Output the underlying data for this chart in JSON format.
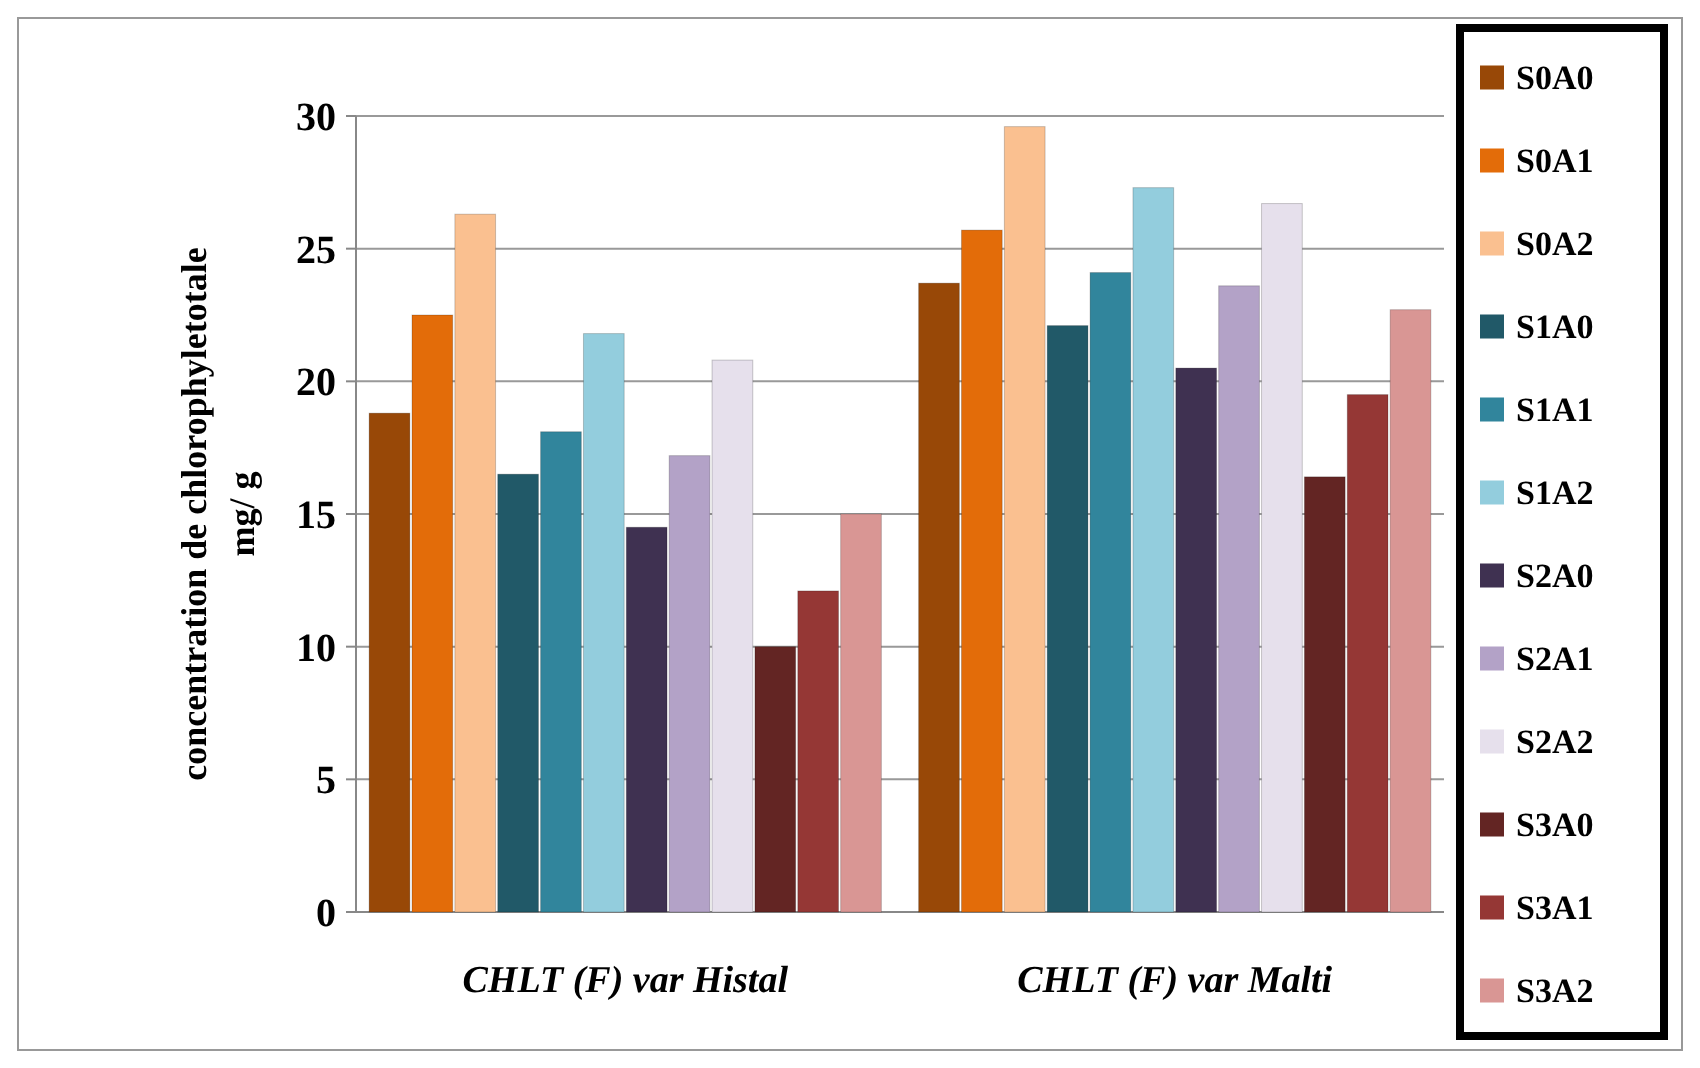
{
  "chart_data": {
    "type": "bar",
    "ylabel": "concentration  de chlorophyletotale\nmg/ g",
    "categories": [
      "CHLT (F) var Histal",
      "CHLT (F) var Malti"
    ],
    "ylim": [
      0,
      30
    ],
    "yticks": [
      0,
      5,
      10,
      15,
      20,
      25,
      30
    ],
    "grid": "y",
    "legend": "right",
    "series": [
      {
        "name": "S0A0",
        "color": "#984807",
        "values": [
          18.8,
          23.7
        ]
      },
      {
        "name": "S0A1",
        "color": "#e36c09",
        "values": [
          22.5,
          25.7
        ]
      },
      {
        "name": "S0A2",
        "color": "#fac090",
        "values": [
          26.3,
          29.6
        ]
      },
      {
        "name": "S1A0",
        "color": "#215968",
        "values": [
          16.5,
          22.1
        ]
      },
      {
        "name": "S1A1",
        "color": "#31859c",
        "values": [
          18.1,
          24.1
        ]
      },
      {
        "name": "S1A2",
        "color": "#93cddd",
        "values": [
          21.8,
          27.3
        ]
      },
      {
        "name": "S2A0",
        "color": "#3f3151",
        "values": [
          14.5,
          20.5
        ]
      },
      {
        "name": "S2A1",
        "color": "#b3a2c7",
        "values": [
          17.2,
          23.6
        ]
      },
      {
        "name": "S2A2",
        "color": "#e6e0ec",
        "values": [
          20.8,
          26.7
        ]
      },
      {
        "name": "S3A0",
        "color": "#632523",
        "values": [
          10,
          16.4
        ]
      },
      {
        "name": "S3A1",
        "color": "#953735",
        "values": [
          12.1,
          19.5
        ]
      },
      {
        "name": "S3A2",
        "color": "#d99694",
        "values": [
          15,
          22.7
        ]
      }
    ]
  }
}
